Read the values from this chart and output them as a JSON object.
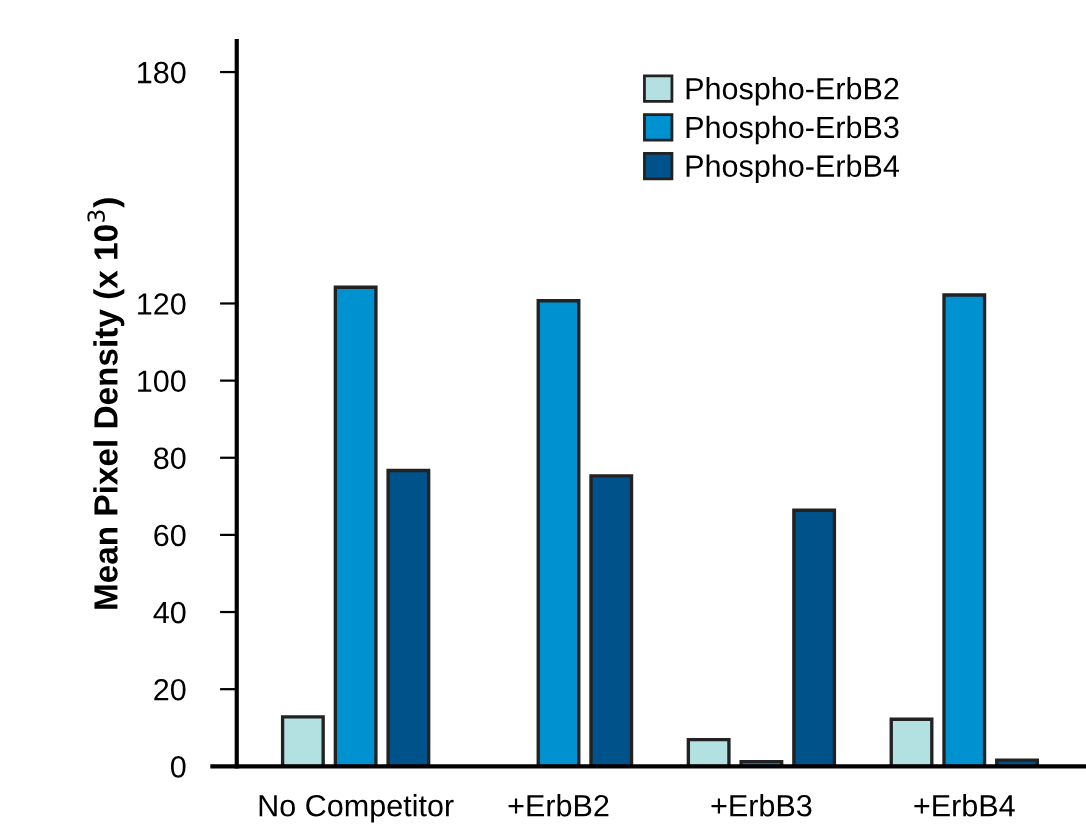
{
  "chart_data": {
    "type": "bar",
    "ylabel": "Mean Pixel Density (x 10$^{3}$)",
    "categories": [
      "No Competitor",
      "+ErbB2",
      "+ErbB3",
      "+ErbB4"
    ],
    "series": [
      {
        "name": "Phospho-ErbB2",
        "color": "#b3e0e0",
        "values": [
          12.8,
          null,
          6.9,
          12.2
        ]
      },
      {
        "name": "Phospho-ErbB3",
        "color": "#0092d0",
        "values": [
          124.2,
          120.7,
          1.2,
          122.2
        ]
      },
      {
        "name": "Phospho-ErbB4",
        "color": "#00538a",
        "values": [
          76.7,
          75.3,
          66.4,
          1.6
        ]
      }
    ],
    "ylim": [
      0,
      188
    ],
    "yticks": [
      0,
      20,
      40,
      60,
      80,
      100,
      120,
      180
    ],
    "grid": false,
    "legend": "top"
  }
}
